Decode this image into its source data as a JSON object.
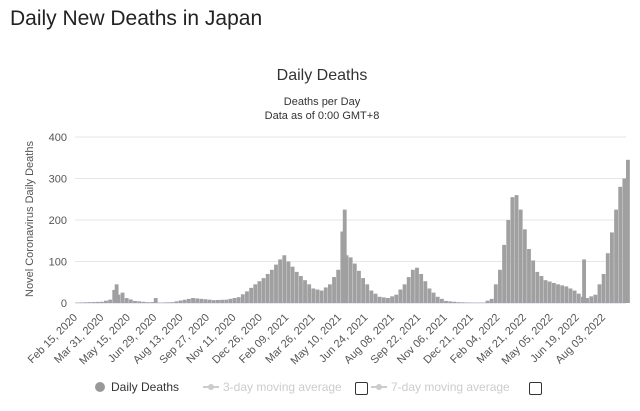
{
  "page": {
    "heading": "Daily New Deaths in Japan"
  },
  "colors": {
    "bars": "#a0a0a0",
    "grid": "#e6e6e6",
    "text": "#333333",
    "disabled": "#cccccc"
  },
  "chart_data": {
    "type": "bar",
    "title": "Daily Deaths",
    "subtitle_lines": [
      "Deaths per Day",
      "Data as of 0:00 GMT+8"
    ],
    "ylabel": "Novel Coronavirus Daily Deaths",
    "xlabel": "",
    "ylim": [
      0,
      400
    ],
    "yticks": [
      0,
      100,
      200,
      300,
      400
    ],
    "x_start": "2020-02-15",
    "x_end": "2022-09-02",
    "x_tick_labels": [
      "Feb 15, 2020",
      "Mar 31, 2020",
      "May 15, 2020",
      "Jun 29, 2020",
      "Aug 13, 2020",
      "Sep 27, 2020",
      "Nov 11, 2020",
      "Dec 26, 2020",
      "Feb 09, 2021",
      "Mar 26, 2021",
      "May 10, 2021",
      "Jun 24, 2021",
      "Aug 08, 2021",
      "Sep 22, 2021",
      "Nov 06, 2021",
      "Dec 21, 2021",
      "Feb 04, 2022",
      "Mar 21, 2022",
      "May 05, 2022",
      "Jun 19, 2022",
      "Aug 03, 2022"
    ],
    "grid": true,
    "legend_position": "bottom",
    "series": [
      {
        "name": "Daily Deaths",
        "interval_days": 7,
        "points": [
          [
            "2020-02-15",
            1
          ],
          [
            "2020-03-07",
            2
          ],
          [
            "2020-03-28",
            3
          ],
          [
            "2020-04-11",
            8
          ],
          [
            "2020-04-22",
            45
          ],
          [
            "2020-04-25",
            20
          ],
          [
            "2020-05-02",
            25
          ],
          [
            "2020-05-09",
            12
          ],
          [
            "2020-05-23",
            5
          ],
          [
            "2020-06-13",
            2
          ],
          [
            "2020-06-24",
            2
          ],
          [
            "2020-06-27",
            12
          ],
          [
            "2020-07-04",
            1
          ],
          [
            "2020-07-25",
            2
          ],
          [
            "2020-08-15",
            8
          ],
          [
            "2020-08-29",
            12
          ],
          [
            "2020-09-12",
            10
          ],
          [
            "2020-10-03",
            7
          ],
          [
            "2020-10-24",
            8
          ],
          [
            "2020-11-14",
            14
          ],
          [
            "2020-11-28",
            28
          ],
          [
            "2020-12-12",
            45
          ],
          [
            "2020-12-26",
            60
          ],
          [
            "2021-01-09",
            80
          ],
          [
            "2021-01-23",
            105
          ],
          [
            "2021-01-30",
            115
          ],
          [
            "2021-02-06",
            100
          ],
          [
            "2021-02-20",
            75
          ],
          [
            "2021-03-06",
            55
          ],
          [
            "2021-03-20",
            35
          ],
          [
            "2021-04-03",
            30
          ],
          [
            "2021-04-17",
            45
          ],
          [
            "2021-05-01",
            80
          ],
          [
            "2021-05-12",
            225
          ],
          [
            "2021-05-15",
            115
          ],
          [
            "2021-05-22",
            110
          ],
          [
            "2021-05-29",
            95
          ],
          [
            "2021-06-12",
            60
          ],
          [
            "2021-06-26",
            30
          ],
          [
            "2021-07-10",
            15
          ],
          [
            "2021-07-24",
            12
          ],
          [
            "2021-08-07",
            20
          ],
          [
            "2021-08-21",
            45
          ],
          [
            "2021-09-04",
            80
          ],
          [
            "2021-09-11",
            85
          ],
          [
            "2021-09-18",
            70
          ],
          [
            "2021-10-02",
            35
          ],
          [
            "2021-10-16",
            15
          ],
          [
            "2021-10-30",
            5
          ],
          [
            "2021-11-20",
            2
          ],
          [
            "2021-12-11",
            1
          ],
          [
            "2022-01-01",
            1
          ],
          [
            "2022-01-15",
            10
          ],
          [
            "2022-01-29",
            80
          ],
          [
            "2022-02-12",
            200
          ],
          [
            "2022-02-19",
            255
          ],
          [
            "2022-02-26",
            260
          ],
          [
            "2022-03-05",
            225
          ],
          [
            "2022-03-19",
            130
          ],
          [
            "2022-04-02",
            75
          ],
          [
            "2022-04-16",
            55
          ],
          [
            "2022-05-07",
            45
          ],
          [
            "2022-05-21",
            40
          ],
          [
            "2022-06-04",
            30
          ],
          [
            "2022-06-18",
            15
          ],
          [
            "2022-06-20",
            105
          ],
          [
            "2022-06-25",
            12
          ],
          [
            "2022-07-09",
            20
          ],
          [
            "2022-07-23",
            70
          ],
          [
            "2022-08-06",
            170
          ],
          [
            "2022-08-20",
            280
          ],
          [
            "2022-08-27",
            300
          ],
          [
            "2022-09-02",
            345
          ]
        ]
      }
    ]
  },
  "legend": {
    "items": [
      {
        "label": "Daily Deaths",
        "enabled": true
      },
      {
        "label": "3-day moving average",
        "enabled": false
      },
      {
        "label": "7-day moving average",
        "enabled": false
      }
    ]
  }
}
